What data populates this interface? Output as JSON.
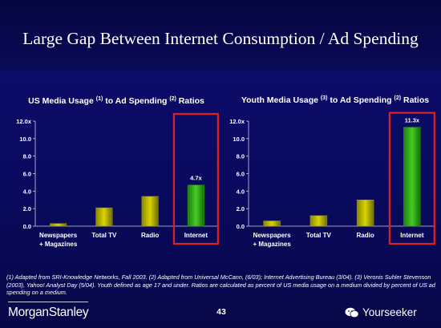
{
  "slide": {
    "title": "Large Gap Between Internet Consumption / Ad Spending",
    "page_number": "43",
    "logo_text": "MorganStanley",
    "watermark_text": "Yourseeker",
    "footnote": "(1) Adapted from SRI-Knowledge Networks, Fall 2003.  (2) Adapted from Universal McCann, (6/03); Internet Advertising Bureau (3/04). (3) Veronis Suhler Stevenson (2003), Yahoo! Analyst Day (5/04).  Youth defined as age 17 and under.  Ratios are calculated as percent of US media usage on a medium divided by percent of US ad spending on a medium.",
    "colors": {
      "background": "#0a0a64",
      "bar_yellow": "#d8d400",
      "bar_green": "#44cc22",
      "highlight_box": "#e02020"
    }
  },
  "chart_data": [
    {
      "type": "bar",
      "title_parts": [
        "US Media Usage ",
        "(1)",
        " to Ad Spending ",
        "(2)",
        " Ratios"
      ],
      "categories": [
        "Newspapers + Magazines",
        "Total TV",
        "Radio",
        "Internet"
      ],
      "category_lines": [
        [
          "Newspapers",
          "+ Magazines"
        ],
        [
          "Total TV"
        ],
        [
          "Radio"
        ],
        [
          "Internet"
        ]
      ],
      "values": [
        0.3,
        2.1,
        3.4,
        4.7
      ],
      "data_labels": [
        "",
        "",
        "",
        "4.7x"
      ],
      "y_ticks": [
        "0.0",
        "2.0",
        "4.0",
        "6.0",
        "8.0",
        "10.0",
        "12.0x"
      ],
      "ylim": [
        0,
        12
      ],
      "highlight_index": 3,
      "grid": false
    },
    {
      "type": "bar",
      "title_parts": [
        "Youth Media Usage ",
        "(3)",
        " to Ad Spending ",
        "(2)",
        " Ratios"
      ],
      "categories": [
        "Newspapers + Magazines",
        "Total TV",
        "Radio",
        "Internet"
      ],
      "category_lines": [
        [
          "Newspapers",
          "+ Magazines"
        ],
        [
          "Total TV"
        ],
        [
          "Radio"
        ],
        [
          "Internet"
        ]
      ],
      "values": [
        0.6,
        1.2,
        3.0,
        11.3
      ],
      "data_labels": [
        "",
        "",
        "",
        "11.3x"
      ],
      "y_ticks": [
        "0.0",
        "2.0",
        "4.0",
        "6.0",
        "8.0",
        "10.0",
        "12.0x"
      ],
      "ylim": [
        0,
        12
      ],
      "highlight_index": 3,
      "grid": false
    }
  ]
}
